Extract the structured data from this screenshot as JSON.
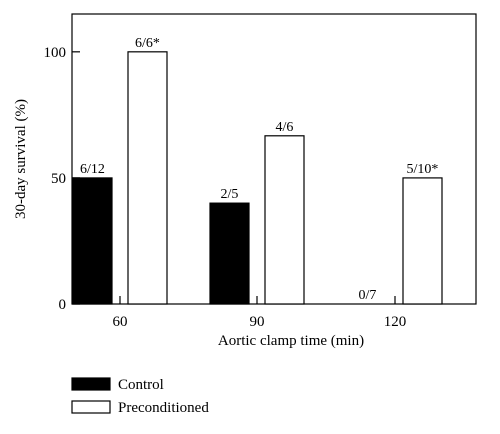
{
  "chart_data": {
    "type": "bar",
    "xlabel": "Aortic clamp time (min)",
    "ylabel": "30-day survival (%)",
    "categories": [
      "60",
      "90",
      "120"
    ],
    "ylim": [
      0,
      115
    ],
    "yticks": [
      0,
      50,
      100
    ],
    "grid": false,
    "legend_position": "bottom-left",
    "series": [
      {
        "name": "Control",
        "color": "#000000",
        "fill": "#000000",
        "values": [
          50,
          40,
          0
        ],
        "labels": [
          "6/12",
          "2/5",
          "0/7"
        ]
      },
      {
        "name": "Preconditioned",
        "color": "#000000",
        "fill": "#ffffff",
        "values": [
          100,
          66.7,
          50
        ],
        "labels": [
          "6/6*",
          "4/6",
          "5/10*"
        ]
      }
    ]
  }
}
